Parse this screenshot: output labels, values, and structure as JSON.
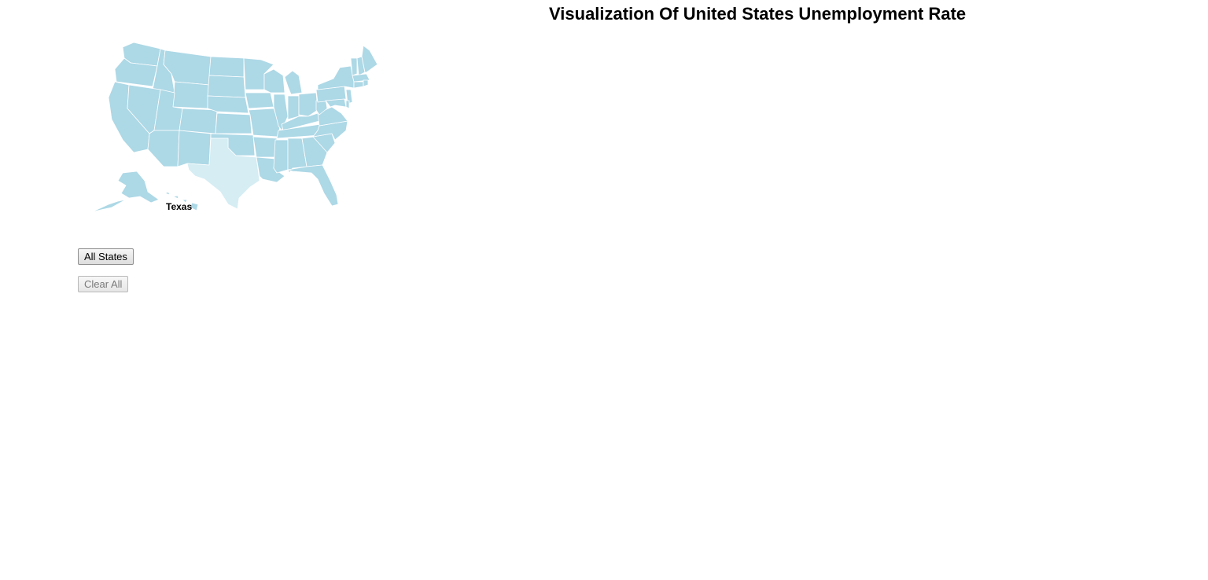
{
  "page": {
    "title": "Visualization Of United States Unemployment Rate"
  },
  "map": {
    "hovered_state": "Texas",
    "colors": {
      "state_fill": "#add8e6",
      "hover_fill": "#d5edf3",
      "border": "#ffffff"
    }
  },
  "controls": {
    "all_states_label": "All States",
    "clear_all_label": "Clear All",
    "clear_all_disabled": true
  }
}
